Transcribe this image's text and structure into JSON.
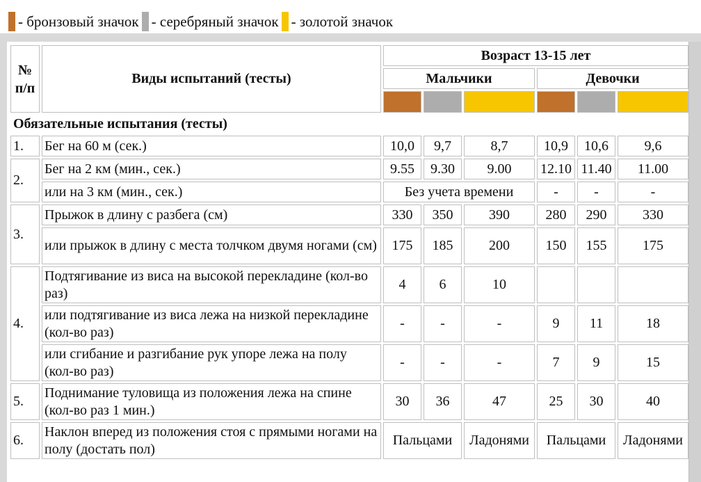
{
  "legend": {
    "bronze_label": "- бронзовый значок",
    "silver_label": "- серебряный значок",
    "gold_label": "- золотой значок"
  },
  "colors": {
    "bronze": "#c0712b",
    "silver": "#adadad",
    "gold": "#f7c600"
  },
  "header": {
    "number_label": "№ п/п",
    "tests_label": "Виды испытаний (тесты)",
    "age_label": "Возраст 13-15 лет",
    "boys_label": "Мальчики",
    "girls_label": "Девочки"
  },
  "section_label": "Обязательные испытания (тесты)",
  "rows": [
    {
      "num": "1.",
      "test": "Бег на 60 м (сек.)",
      "values": [
        "10,0",
        "9,7",
        "8,7",
        "10,9",
        "10,6",
        "9,6"
      ]
    },
    {
      "num": "2.",
      "test": "Бег на 2 км (мин., сек.)",
      "values": [
        "9.55",
        "9.30",
        "9.00",
        "12.10",
        "11.40",
        "11.00"
      ]
    },
    {
      "test": "или на 3 км (мин., сек.)",
      "boys_merged": "Без учета времени",
      "girls": [
        "-",
        "-",
        "-"
      ]
    },
    {
      "num": "3.",
      "test": "Прыжок в длину с разбега (см)",
      "values": [
        "330",
        "350",
        "390",
        "280",
        "290",
        "330"
      ]
    },
    {
      "test": "или прыжок в длину с места толчком двумя ногами (см)",
      "values": [
        "175",
        "185",
        "200",
        "150",
        "155",
        "175"
      ]
    },
    {
      "num": "4.",
      "test": "Подтягивание из виса на высокой перекладине (кол-во раз)",
      "values": [
        "4",
        "6",
        "10",
        "",
        "",
        ""
      ]
    },
    {
      "test": "или подтягивание из виса лежа на низкой перекладине (кол-во раз)",
      "values": [
        "-",
        "-",
        "-",
        "9",
        "11",
        "18"
      ]
    },
    {
      "test": "или сгибание и разгибание рук упоре лежа на полу (кол-во раз)",
      "values": [
        "-",
        "-",
        "-",
        "7",
        "9",
        "15"
      ]
    },
    {
      "num": "5.",
      "test": "Поднимание туловища из положения лежа на спине (кол-во раз 1 мин.)",
      "values": [
        "30",
        "36",
        "47",
        "25",
        "30",
        "40"
      ]
    },
    {
      "num": "6.",
      "test": "Наклон вперед из положения стоя с прямыми ногами на полу (достать пол)",
      "values": [
        "Пальцами",
        "",
        "Ладонями",
        "Пальцами",
        "",
        "Ладонями"
      ]
    }
  ]
}
